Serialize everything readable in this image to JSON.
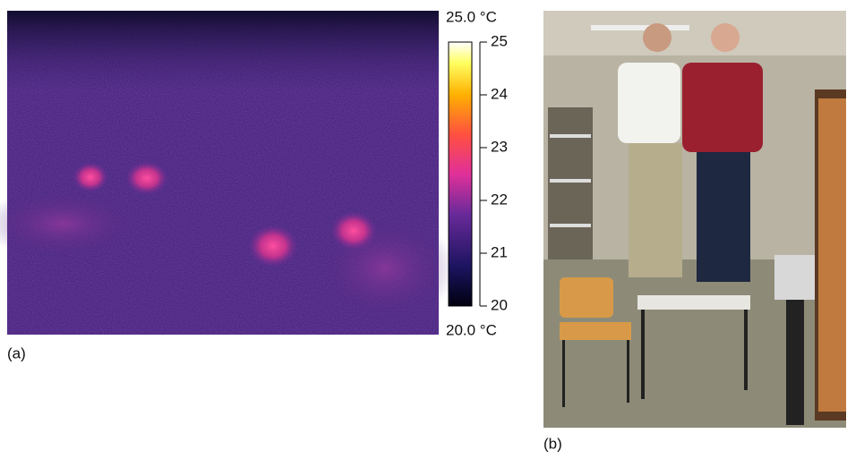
{
  "colorbar": {
    "max_label": "25.0 °C",
    "min_label": "20.0 °C",
    "lim": [
      20,
      25
    ],
    "ticks": [
      20,
      21,
      22,
      23,
      24,
      25
    ]
  },
  "panels": [
    {
      "label": "(a)"
    },
    {
      "label": "(b)"
    }
  ]
}
